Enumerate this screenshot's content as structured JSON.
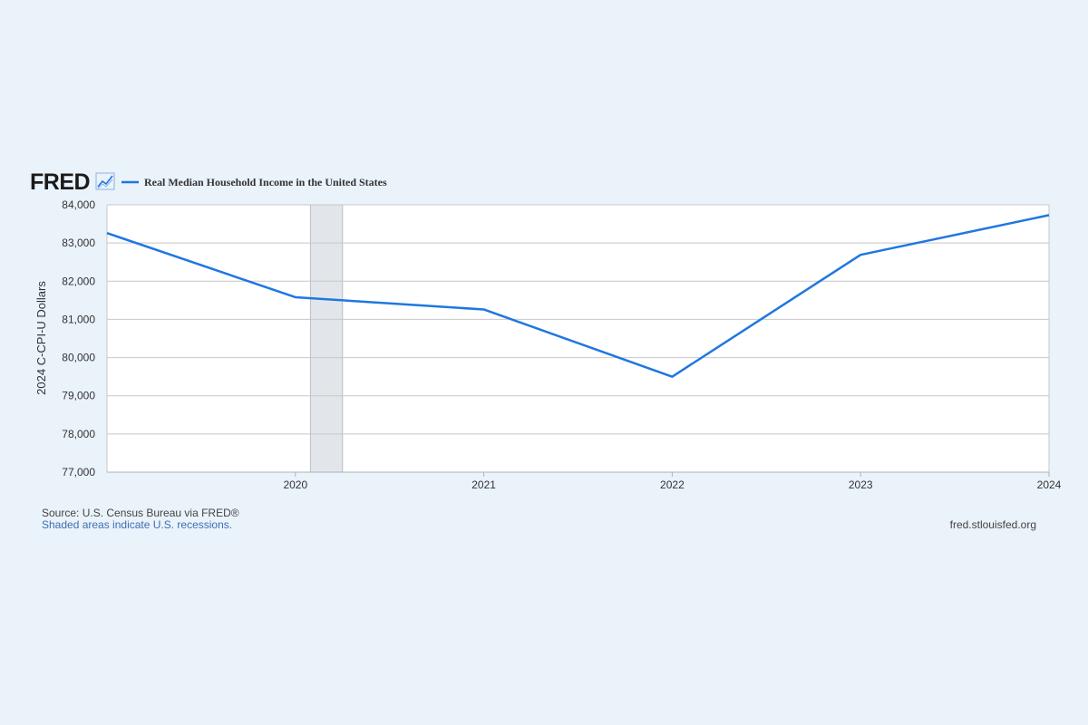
{
  "brand": {
    "logo_text": "FRED",
    "logo_icon": "trend-line-icon"
  },
  "chart_data": {
    "type": "line",
    "x": [
      2019,
      2020,
      2021,
      2022,
      2023,
      2024
    ],
    "series": [
      {
        "name": "Real Median Household Income in the United States",
        "values": [
          83260,
          81580,
          81260,
          79500,
          82690,
          83730
        ],
        "color": "#1f77e0"
      }
    ],
    "xlim": [
      2019,
      2024
    ],
    "xticks": [
      "2020",
      "2021",
      "2022",
      "2023",
      "2024"
    ],
    "ylabel": "2024 C-CPI-U Dollars",
    "ylim": [
      77000,
      84000
    ],
    "yticks": [
      "77,000",
      "78,000",
      "79,000",
      "80,000",
      "81,000",
      "82,000",
      "83,000",
      "84,000"
    ],
    "recessions": [
      [
        2020.08,
        2020.25
      ]
    ],
    "grid": true,
    "legend_position": "top-left"
  },
  "footer": {
    "source": "Source: U.S. Census Bureau via FRED®",
    "recession_note": "Shaded areas indicate U.S. recessions.",
    "site": "fred.stlouisfed.org"
  },
  "colors": {
    "background": "#eaf2fa",
    "plot_background": "#ffffff",
    "gridline": "#c8c8c8",
    "recession_shade": "#e2e6ea",
    "line": "#1f77e0",
    "recession_link": "#3b6fb6"
  }
}
